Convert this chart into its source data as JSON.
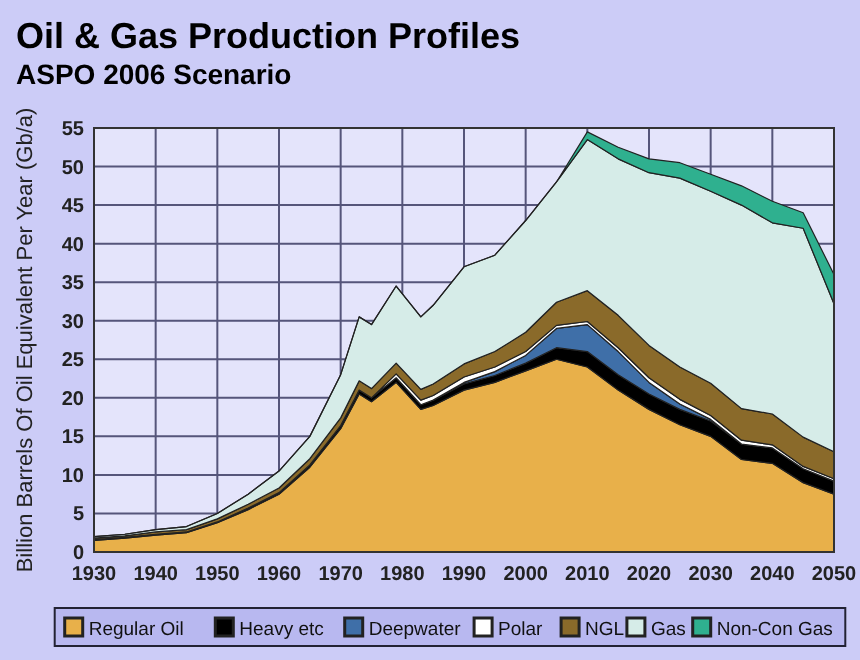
{
  "chart_data": {
    "type": "area",
    "stacked": true,
    "title": "Oil & Gas Production Profiles",
    "subtitle": "ASPO 2006 Scenario",
    "ylabel": "Billion Barrels Of Oil Equivalent Per Year (Gb/a)",
    "x": [
      1930,
      1935,
      1940,
      1945,
      1950,
      1955,
      1960,
      1965,
      1970,
      1973,
      1975,
      1979,
      1983,
      1985,
      1990,
      1995,
      2000,
      2005,
      2010,
      2015,
      2020,
      2025,
      2030,
      2035,
      2040,
      2045,
      2050
    ],
    "series": [
      {
        "name": "Regular Oil",
        "color": "#e8b04a",
        "values": [
          1.5,
          1.8,
          2.2,
          2.5,
          3.8,
          5.5,
          7.5,
          11,
          16,
          20.5,
          19.5,
          22,
          18.5,
          19,
          21,
          22,
          23.5,
          25,
          24,
          21,
          18.5,
          16.5,
          15,
          12,
          11.5,
          9,
          7.5
        ]
      },
      {
        "name": "Heavy etc",
        "color": "#000000",
        "values": [
          0.1,
          0.1,
          0.1,
          0.1,
          0.1,
          0.2,
          0.2,
          0.3,
          0.4,
          0.5,
          0.5,
          0.6,
          0.6,
          0.7,
          0.8,
          0.9,
          1,
          1.5,
          2,
          2,
          2,
          2,
          2,
          2,
          2,
          1.8,
          1.7
        ]
      },
      {
        "name": "Deepwater",
        "color": "#3f6fa8",
        "values": [
          0,
          0,
          0,
          0,
          0,
          0,
          0,
          0,
          0,
          0,
          0,
          0,
          0,
          0,
          0.2,
          0.5,
          1,
          2.5,
          3.5,
          3,
          1.5,
          0.7,
          0.2,
          0,
          0,
          0,
          0
        ]
      },
      {
        "name": "Polar",
        "color": "#ffffff",
        "values": [
          0,
          0,
          0,
          0,
          0,
          0,
          0,
          0,
          0,
          0,
          0,
          0.5,
          0.6,
          0.6,
          0.7,
          0.6,
          0.5,
          0.4,
          0.4,
          0.5,
          0.6,
          0.6,
          0.5,
          0.5,
          0.4,
          0.3,
          0.3
        ]
      },
      {
        "name": "NGL",
        "color": "#8a6a2a",
        "values": [
          0.2,
          0.2,
          0.3,
          0.3,
          0.4,
          0.5,
          0.6,
          0.8,
          1,
          1.2,
          1.2,
          1.4,
          1.4,
          1.5,
          1.7,
          2,
          2.5,
          3,
          4,
          4.2,
          4.2,
          4.2,
          4.2,
          4.1,
          4,
          3.8,
          3.5
        ]
      },
      {
        "name": "Gas",
        "color": "#d6ece8",
        "values": [
          0.2,
          0.2,
          0.3,
          0.4,
          0.7,
          1.3,
          2.2,
          2.9,
          5.6,
          8.3,
          8.3,
          10,
          9.4,
          10.2,
          12.6,
          12.5,
          14.5,
          15.6,
          19.6,
          20.3,
          22.4,
          24.5,
          24.9,
          26.4,
          24.8,
          27.1,
          19.2
        ]
      },
      {
        "name": "Non-Con Gas",
        "color": "#2fb08f",
        "values": [
          0,
          0,
          0,
          0,
          0,
          0,
          0,
          0,
          0,
          0,
          0,
          0,
          0,
          0,
          0,
          0,
          0,
          0,
          1,
          1.5,
          1.8,
          2,
          2.2,
          2.5,
          2.8,
          2,
          3.8
        ]
      }
    ],
    "xlim": [
      1930,
      2050
    ],
    "xticks": [
      1930,
      1940,
      1950,
      1960,
      1970,
      1980,
      1990,
      2000,
      2010,
      2020,
      2030,
      2040,
      2050
    ],
    "ylim": [
      0,
      55
    ],
    "yticks": [
      0,
      5,
      10,
      15,
      20,
      25,
      30,
      35,
      40,
      45,
      50,
      55
    ],
    "grid": true,
    "legend": "bottom"
  }
}
